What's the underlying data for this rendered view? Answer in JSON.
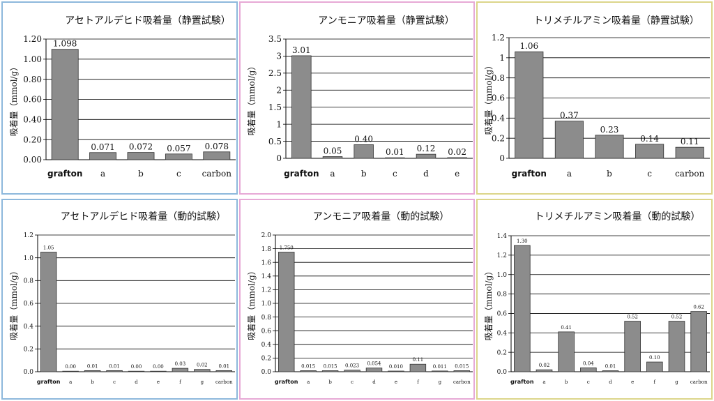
{
  "ylabel": "吸着量（mmol/g）",
  "chart_data": [
    {
      "type": "bar",
      "title": "アセトアルデヒド吸着量（静置試験）",
      "ylabel": "吸着量（mmol/g）",
      "categories": [
        "grafton",
        "a",
        "b",
        "c",
        "carbon"
      ],
      "values": [
        1.098,
        0.071,
        0.072,
        0.057,
        0.078
      ],
      "labels": [
        "1.098",
        "0.071",
        "0.072",
        "0.057",
        "0.078"
      ],
      "ticks": [
        "0.00",
        "0.20",
        "0.40",
        "0.60",
        "0.80",
        "1.00",
        "1.20"
      ],
      "ylim": [
        0,
        1.2
      ],
      "grid": true,
      "colors": {
        "border": "#8db8dc",
        "bar": "#8c8c8c"
      }
    },
    {
      "type": "bar",
      "title": "アンモニア吸着量（静置試験）",
      "ylabel": "吸着量（mmol/g）",
      "categories": [
        "grafton",
        "a",
        "b",
        "c",
        "d",
        "e"
      ],
      "values": [
        3.01,
        0.05,
        0.4,
        0.01,
        0.12,
        0.02
      ],
      "labels": [
        "3.01",
        "0.05",
        "0.40",
        "0.01",
        "0.12",
        "0.02"
      ],
      "ticks": [
        "0",
        "0.5",
        "1",
        "1.5",
        "2",
        "2.5",
        "3",
        "3.5"
      ],
      "ylim": [
        0,
        3.5
      ],
      "grid": true,
      "colors": {
        "border": "#e7a9d6",
        "bar": "#8c8c8c"
      }
    },
    {
      "type": "bar",
      "title": "トリメチルアミン吸着量（静置試験）",
      "ylabel": "吸着量（mmol/g）",
      "categories": [
        "grafton",
        "a",
        "b",
        "c",
        "carbon"
      ],
      "values": [
        1.06,
        0.37,
        0.23,
        0.14,
        0.11
      ],
      "labels": [
        "1.06",
        "0.37",
        "0.23",
        "0.14",
        "0.11"
      ],
      "ticks": [
        "0",
        "0.2",
        "0.4",
        "0.6",
        "0.8",
        "1",
        "1.2"
      ],
      "ylim": [
        0,
        1.2
      ],
      "grid": true,
      "colors": {
        "border": "#dcd58a",
        "bar": "#8c8c8c"
      }
    },
    {
      "type": "bar",
      "title": "アセトアルデヒド吸着量（動的試験）",
      "ylabel": "吸着量（mmol/g）",
      "categories": [
        "grafton",
        "a",
        "b",
        "c",
        "d",
        "e",
        "f",
        "g",
        "carbon"
      ],
      "values": [
        1.05,
        0.0,
        0.01,
        0.01,
        0.0,
        0.0,
        0.03,
        0.02,
        0.01
      ],
      "labels": [
        "1.05",
        "0.00",
        "0.01",
        "0.01",
        "0.00",
        "0.00",
        "0.03",
        "0.02",
        "0.01"
      ],
      "ticks": [
        "0.0",
        "0.2",
        "0.4",
        "0.6",
        "0.8",
        "1.0",
        "1.2"
      ],
      "ylim": [
        0,
        1.2
      ],
      "grid": true,
      "colors": {
        "border": "#8db8dc",
        "bar": "#8c8c8c"
      }
    },
    {
      "type": "bar",
      "title": "アンモニア吸着量（動的試験）",
      "ylabel": "吸着量（mmol/g）",
      "categories": [
        "grafton",
        "a",
        "b",
        "c",
        "d",
        "e",
        "f",
        "g",
        "carbon"
      ],
      "values": [
        1.75,
        0.015,
        0.015,
        0.023,
        0.054,
        0.01,
        0.11,
        0.011,
        0.015
      ],
      "labels": [
        "1.750",
        "0.015",
        "0.015",
        "0.023",
        "0.054",
        "0.010",
        "0.11",
        "0.011",
        "0.015"
      ],
      "ticks": [
        "0.0",
        "0.2",
        "0.4",
        "0.6",
        "0.8",
        "1.0",
        "1.2",
        "1.4",
        "1.6",
        "1.8",
        "2.0"
      ],
      "ylim": [
        0,
        2.0
      ],
      "grid": true,
      "colors": {
        "border": "#e7a9d6",
        "bar": "#8c8c8c"
      }
    },
    {
      "type": "bar",
      "title": "トリメチルアミン吸着量（動的試験）",
      "ylabel": "吸着量（mmol/g）",
      "categories": [
        "grafton",
        "a",
        "b",
        "c",
        "d",
        "e",
        "f",
        "g",
        "carbon"
      ],
      "values": [
        1.3,
        0.02,
        0.41,
        0.04,
        0.01,
        0.52,
        0.1,
        0.52,
        0.62
      ],
      "labels": [
        "1.30",
        "0.02",
        "0.41",
        "0.04",
        "0.01",
        "0.52",
        "0.10",
        "0.52",
        "0.62"
      ],
      "ticks": [
        "0.0",
        "0.2",
        "0.4",
        "0.6",
        "0.8",
        "1.0",
        "1.2",
        "1.4"
      ],
      "ylim": [
        0,
        1.4
      ],
      "grid": true,
      "colors": {
        "border": "#dcd58a",
        "bar": "#8c8c8c"
      }
    }
  ]
}
